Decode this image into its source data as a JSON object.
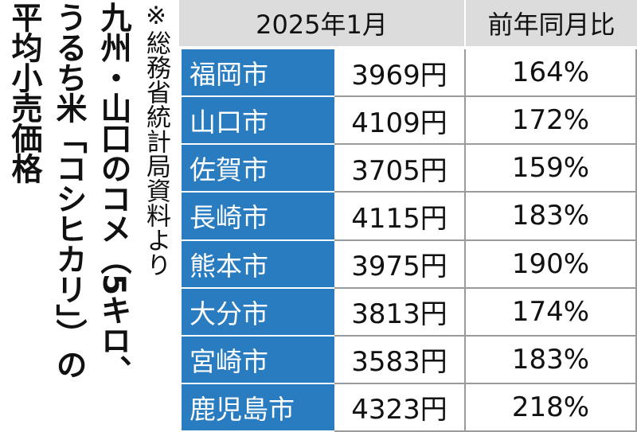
{
  "title": {
    "lines": [
      "九州・山口のコメ（5キロ、",
      "うるち米「コシヒカリ」）の",
      "平均小売価格"
    ],
    "note": "※総務省統計局資料より"
  },
  "table": {
    "header": [
      "2025年1月",
      "前年同月比"
    ],
    "rows": [
      [
        "福岡市",
        "3969円",
        "164%"
      ],
      [
        "山口市",
        "4109円",
        "172%"
      ],
      [
        "佐賀市",
        "3705円",
        "159%"
      ],
      [
        "長崎市",
        "4115円",
        "183%"
      ],
      [
        "熊本市",
        "3975円",
        "190%"
      ],
      [
        "大分市",
        "3813円",
        "174%"
      ],
      [
        "宮崎市",
        "3583円",
        "183%"
      ],
      [
        "鹿児島市",
        "4323円",
        "218%"
      ]
    ]
  }
}
